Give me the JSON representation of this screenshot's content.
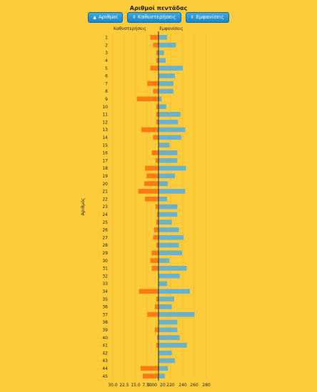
{
  "title": "Αριθμοί πεντάδας",
  "buttons": [
    {
      "label": "Αριθμοί",
      "icon": "arrow-up-icon",
      "glyph": "▲"
    },
    {
      "label": "Καθυστερήσεις",
      "icon": "sort-icon",
      "glyph": "⇕"
    },
    {
      "label": "Εμφανίσεις",
      "icon": "sort-icon",
      "glyph": "⇕"
    }
  ],
  "colors": {
    "background": "#fecc3a",
    "delays": "#ff7a12",
    "appearances": "#6ab1cc",
    "axis": "#222222",
    "button": "#1b86c6"
  },
  "chart_data": {
    "type": "bar",
    "ylabel": "Αριθμός",
    "left_label": "Καθυστερήσεις",
    "right_label": "Εμφανίσεις",
    "left_ticks": [
      "30.0",
      "22.5",
      "15.0",
      "7.50",
      "0.00"
    ],
    "right_ticks": [
      "20",
      "220",
      "240",
      "260",
      "280"
    ],
    "categories": [
      "1",
      "2",
      "3",
      "4",
      "5",
      "6",
      "7",
      "8",
      "9",
      "10",
      "11",
      "12",
      "13",
      "14",
      "15",
      "16",
      "17",
      "18",
      "19",
      "20",
      "21",
      "22",
      "23",
      "24",
      "25",
      "26",
      "27",
      "28",
      "29",
      "30",
      "31",
      "32",
      "33",
      "34",
      "35",
      "36",
      "37",
      "38",
      "39",
      "40",
      "41",
      "42",
      "43",
      "44",
      "45"
    ],
    "series": [
      {
        "name": "Καθυστερήσεις",
        "values": [
          5.5,
          3.5,
          1.5,
          1.5,
          5.5,
          0,
          7.5,
          3.5,
          14.5,
          1.5,
          1.5,
          1.5,
          11.5,
          3.5,
          0,
          4.5,
          2,
          9,
          8,
          9.5,
          13.5,
          9,
          2,
          1,
          1.5,
          3,
          3.5,
          1.5,
          4.5,
          5.5,
          4.5,
          0,
          0,
          13,
          1.5,
          2.5,
          7.5,
          0,
          2.5,
          1,
          1.5,
          0,
          0,
          12,
          10.5
        ]
      },
      {
        "name": "Εμφανίσεις",
        "values": [
          207,
          218,
          203,
          205,
          227,
          217,
          215,
          215,
          200,
          206,
          224,
          221,
          230,
          225,
          210,
          220,
          220,
          231,
          217,
          208,
          230,
          207,
          220,
          220,
          213,
          222,
          228,
          222,
          226,
          210,
          232,
          223,
          207,
          236,
          216,
          213,
          242,
          220,
          220,
          223,
          232,
          213,
          217,
          208,
          204
        ]
      }
    ]
  }
}
